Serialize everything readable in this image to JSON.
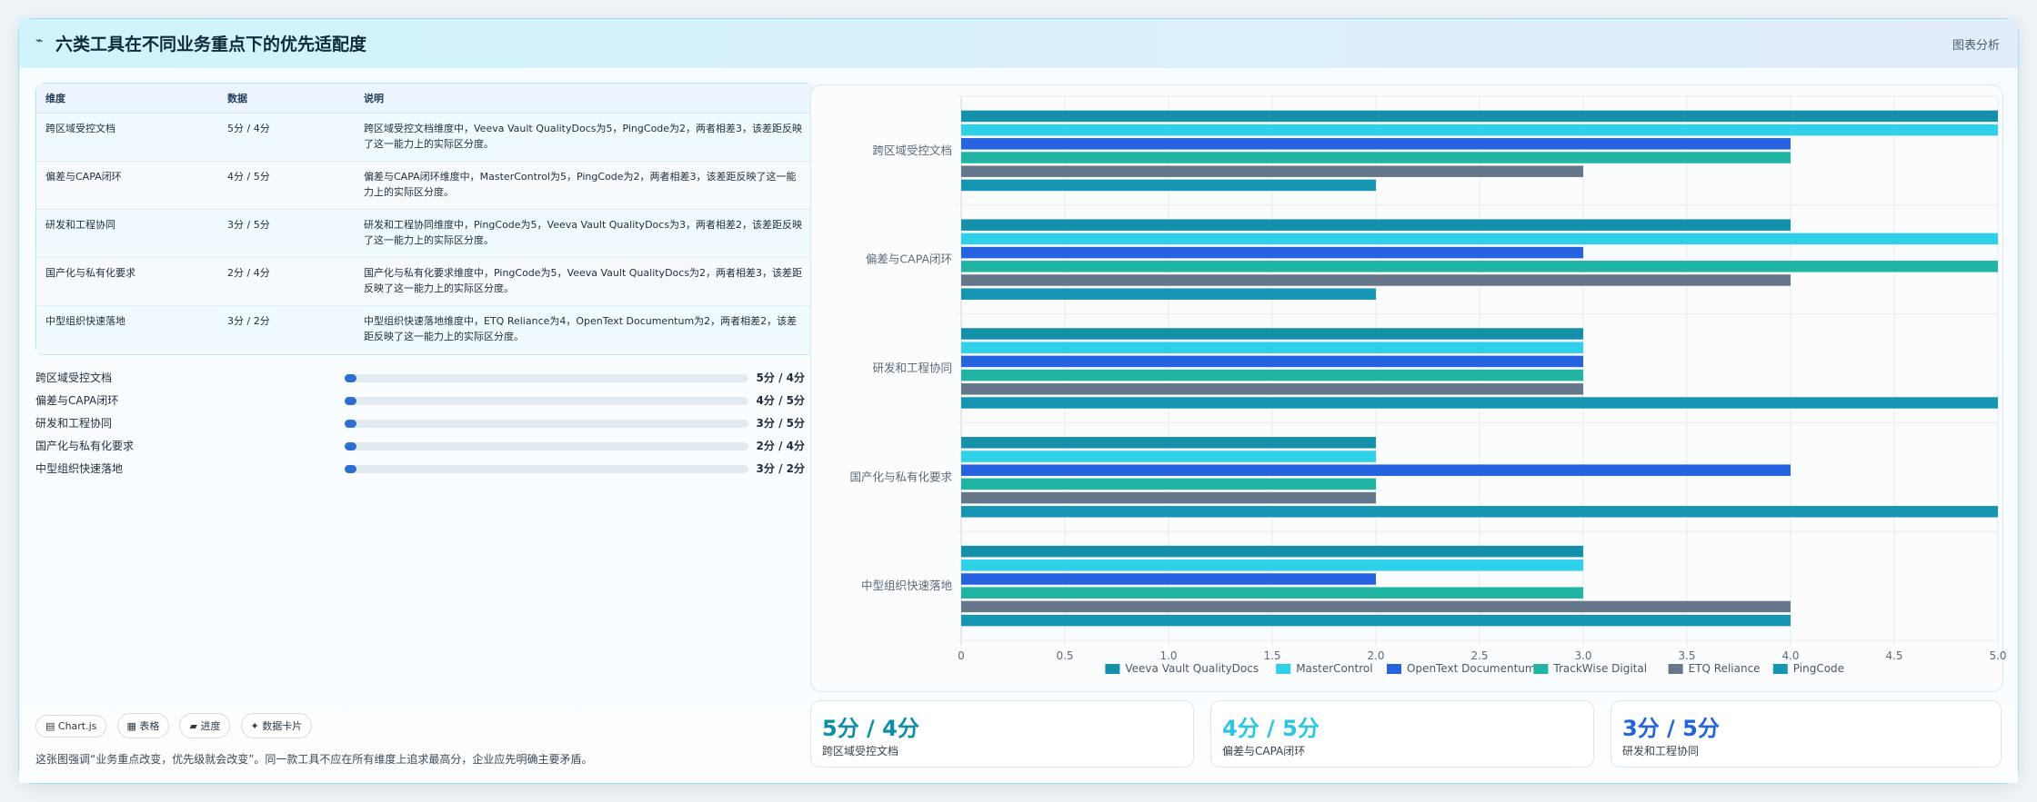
{
  "card": {
    "title": "六类工具在不同业务重点下的优先适配度",
    "icon": "line-chart-icon",
    "header_link": "图表分析"
  },
  "table": {
    "headers": [
      "维度",
      "数据",
      "说明"
    ],
    "rows": [
      {
        "dim": "跨区域受控文档",
        "data": "5分 / 4分",
        "note": "跨区域受控文档维度中，Veeva Vault QualityDocs为5，PingCode为2，两者相差3，该差距反映了这一能力上的实际区分度。"
      },
      {
        "dim": "偏差与CAPA闭环",
        "data": "4分 / 5分",
        "note": "偏差与CAPA闭环维度中，MasterControl为5，PingCode为2，两者相差3，该差距反映了这一能力上的实际区分度。"
      },
      {
        "dim": "研发和工程协同",
        "data": "3分 / 5分",
        "note": "研发和工程协同维度中，PingCode为5，Veeva Vault QualityDocs为3，两者相差2，该差距反映了这一能力上的实际区分度。"
      },
      {
        "dim": "国产化与私有化要求",
        "data": "2分 / 4分",
        "note": "国产化与私有化要求维度中，PingCode为5，Veeva Vault QualityDocs为2，两者相差3，该差距反映了这一能力上的实际区分度。"
      },
      {
        "dim": "中型组织快速落地",
        "data": "3分 / 2分",
        "note": "中型组织快速落地维度中，ETQ Reliance为4，OpenText Documentum为2，两者相差2，该差距反映了这一能力上的实际区分度。"
      }
    ]
  },
  "progress": [
    {
      "label": "跨区域受控文档",
      "value": "5分 / 4分",
      "fraction": 0.03
    },
    {
      "label": "偏差与CAPA闭环",
      "value": "4分 / 5分",
      "fraction": 0.03
    },
    {
      "label": "研发和工程协同",
      "value": "3分 / 5分",
      "fraction": 0.03
    },
    {
      "label": "国产化与私有化要求",
      "value": "2分 / 4分",
      "fraction": 0.03
    },
    {
      "label": "中型组织快速落地",
      "value": "3分 / 2分",
      "fraction": 0.03
    }
  ],
  "chips": [
    "▤ Chart.js",
    "▦ 表格",
    "▰ 进度",
    "✦ 数据卡片"
  ],
  "footnote": "这张图强调“业务重点改变，优先级就会改变”。同一款工具不应在所有维度上追求最高分，企业应先明确主要矛盾。",
  "stats": [
    {
      "value": "5分 / 4分",
      "label": "跨区域受控文档",
      "color": "#0e8fa8"
    },
    {
      "value": "4分 / 5分",
      "label": "偏差与CAPA闭环",
      "color": "#2cc6df"
    },
    {
      "value": "3分 / 5分",
      "label": "研发和工程协同",
      "color": "#2563d8"
    }
  ],
  "chart_data": {
    "type": "bar",
    "orientation": "horizontal",
    "categories": [
      "跨区域受控文档",
      "偏差与CAPA闭环",
      "研发和工程协同",
      "国产化与私有化要求",
      "中型组织快速落地"
    ],
    "series": [
      {
        "name": "Veeva Vault QualityDocs",
        "color": "#1590aa",
        "values": [
          5,
          4,
          3,
          2,
          3
        ]
      },
      {
        "name": "MasterControl",
        "color": "#2fd0ea",
        "values": [
          5,
          5,
          3,
          2,
          3
        ]
      },
      {
        "name": "OpenText Documentum",
        "color": "#2563e0",
        "values": [
          4,
          3,
          3,
          4,
          2
        ]
      },
      {
        "name": "TrackWise Digital",
        "color": "#1fb5a2",
        "values": [
          4,
          5,
          3,
          2,
          3
        ]
      },
      {
        "name": "ETQ Reliance",
        "color": "#66778c",
        "values": [
          3,
          4,
          3,
          2,
          4
        ]
      },
      {
        "name": "PingCode",
        "color": "#1796b4",
        "values": [
          2,
          2,
          5,
          5,
          4
        ]
      }
    ],
    "xlim": [
      0,
      5
    ],
    "xticks": [
      "0",
      "0.5",
      "1.0",
      "1.5",
      "2.0",
      "2.5",
      "3.0",
      "3.5",
      "4.0",
      "4.5",
      "5.0"
    ],
    "grid": true,
    "legend": "bottom"
  }
}
